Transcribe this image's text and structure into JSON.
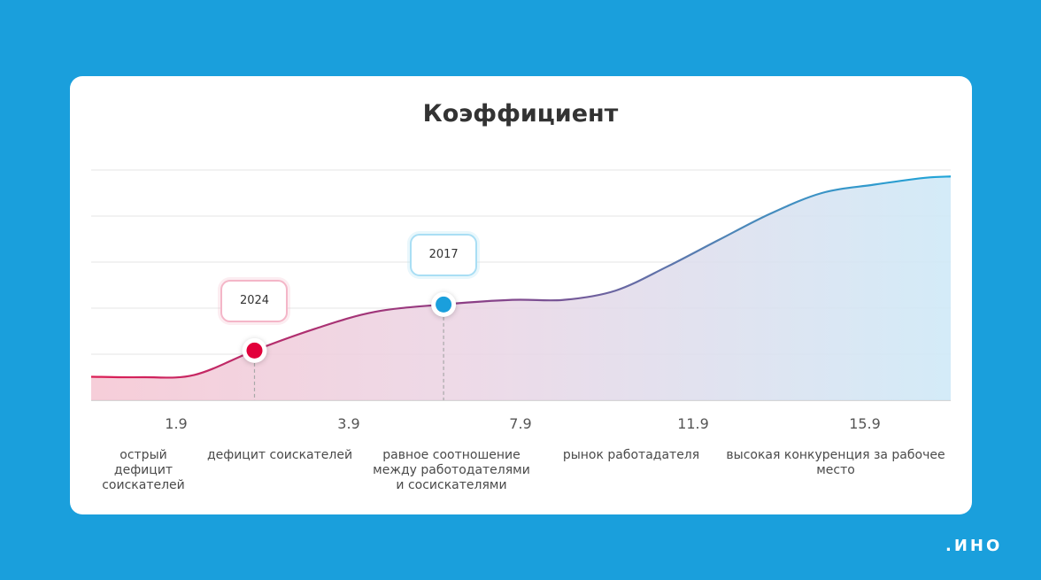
{
  "chart_data": {
    "type": "area",
    "title": "Коэффициент",
    "x_ticks": [
      "1.9",
      "3.9",
      "7.9",
      "11.9",
      "15.9"
    ],
    "categories": [
      "острый\nдефицит\nсоискателей",
      "дефицит соискателей",
      "равное соотношение\nмежду работодателями\nи сосискателями",
      "рынок работадателя",
      "высокая конкуренция за рабочее\nместо"
    ],
    "markers": [
      {
        "label": "2024",
        "color": "#e2003a",
        "position": 0.19
      },
      {
        "label": "2017",
        "color": "#1a9fdc",
        "position": 0.41
      }
    ],
    "series": [
      {
        "x": [
          0.0,
          0.06,
          0.12,
          0.19,
          0.26,
          0.33,
          0.41,
          0.49,
          0.55,
          0.61,
          0.67,
          0.73,
          0.79,
          0.85,
          0.91,
          0.97,
          1.0
        ],
        "y": [
          0.51,
          0.5,
          0.55,
          1.08,
          1.55,
          1.92,
          2.08,
          2.18,
          2.18,
          2.38,
          2.9,
          3.48,
          4.05,
          4.5,
          4.68,
          4.83,
          4.86
        ]
      }
    ],
    "ylim": [
      0,
      5
    ],
    "grid": true,
    "colors": {
      "start": "#dc1e55",
      "mid": "#7a4f9a",
      "end": "#1fa5d9"
    }
  },
  "brand": ".ИНО"
}
